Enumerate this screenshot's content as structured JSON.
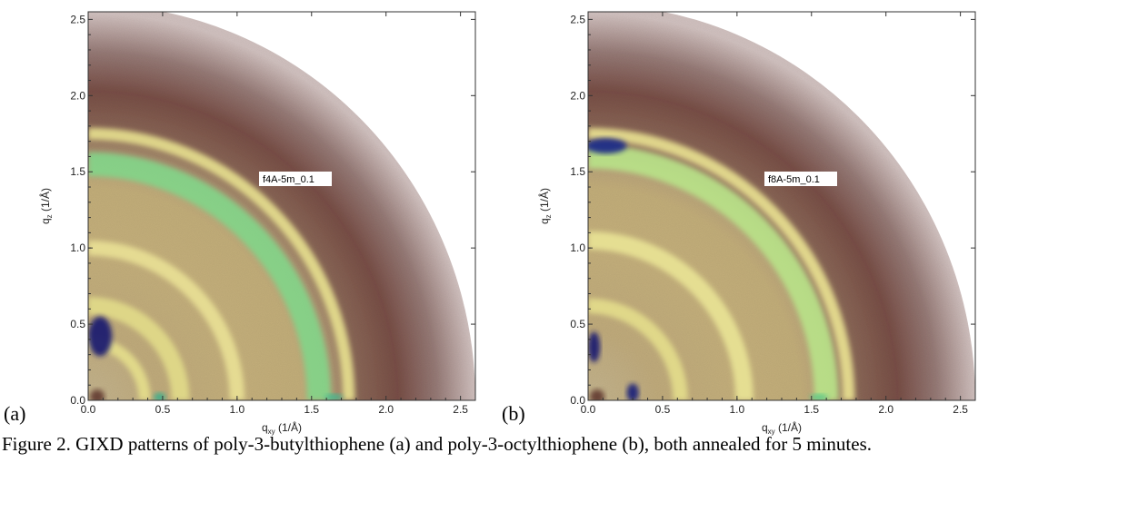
{
  "chart_data": [
    {
      "type": "heatmap",
      "panel_label": "(a)",
      "annotation": "f4A-5m_0.1",
      "xlabel": "q",
      "xlabel_sub": "xy",
      "xlabel_units": "(1/Å)",
      "ylabel": "q",
      "ylabel_sub": "z",
      "ylabel_units": "(1/Å)",
      "xlim": [
        0.0,
        2.6
      ],
      "ylim": [
        0.0,
        2.55
      ],
      "xticks": [
        0.0,
        0.5,
        1.0,
        1.5,
        2.0,
        2.5
      ],
      "yticks": [
        0.0,
        0.5,
        1.0,
        1.5,
        2.0,
        2.5
      ],
      "xtick_labels": [
        "0.0",
        "0.5",
        "1.0",
        "1.5",
        "2.0",
        "2.5"
      ],
      "ytick_labels": [
        "0.0",
        "0.5",
        "1.0",
        "1.5",
        "2.0",
        "2.5"
      ],
      "detector_radius": 2.6,
      "colormap": [
        "#1a1a6e",
        "#2e8a9e",
        "#66d47e",
        "#f4f49a",
        "#b8a070",
        "#7a4a3c",
        "#d8cac8"
      ],
      "rings": [
        {
          "q": 0.38,
          "width": 0.08,
          "color": "#e8e28c",
          "arc_deg": [
            0,
            90
          ]
        },
        {
          "q": 0.62,
          "width": 0.12,
          "color": "#e4de8a",
          "arc_deg": [
            0,
            90
          ]
        },
        {
          "q": 1.0,
          "width": 0.1,
          "color": "#ece496",
          "arc_deg": [
            0,
            90
          ]
        },
        {
          "q": 1.55,
          "width": 0.16,
          "color": "#7fd889",
          "arc_deg": [
            0,
            90
          ]
        },
        {
          "q": 1.75,
          "width": 0.08,
          "color": "#ece692",
          "arc_deg": [
            0,
            90
          ]
        }
      ],
      "hotspots": [
        {
          "qx": 0.08,
          "qz": 0.42,
          "rx": 0.08,
          "rz": 0.13,
          "color": "#1a1c70"
        },
        {
          "qx": 0.48,
          "qz": 0.02,
          "rx": 0.04,
          "rz": 0.03,
          "color": "#3fae8a"
        },
        {
          "qx": 1.65,
          "qz": 0.02,
          "rx": 0.06,
          "rz": 0.02,
          "color": "#40b890"
        }
      ]
    },
    {
      "type": "heatmap",
      "panel_label": "(b)",
      "annotation": "f8A-5m_0.1",
      "xlabel": "q",
      "xlabel_sub": "xy",
      "xlabel_units": "(1/Å)",
      "ylabel": "q",
      "ylabel_sub": "z",
      "ylabel_units": "(1/Å)",
      "xlim": [
        0.0,
        2.6
      ],
      "ylim": [
        0.0,
        2.55
      ],
      "xticks": [
        0.0,
        0.5,
        1.0,
        1.5,
        2.0,
        2.5
      ],
      "yticks": [
        0.0,
        0.5,
        1.0,
        1.5,
        2.0,
        2.5
      ],
      "xtick_labels": [
        "0.0",
        "0.5",
        "1.0",
        "1.5",
        "2.0",
        "2.5"
      ],
      "ytick_labels": [
        "0.0",
        "0.5",
        "1.0",
        "1.5",
        "2.0",
        "2.5"
      ],
      "detector_radius": 2.6,
      "colormap": [
        "#1a1a6e",
        "#2e8a9e",
        "#66d47e",
        "#f4f49a",
        "#b8a070",
        "#7a4a3c",
        "#d8cac8"
      ],
      "rings": [
        {
          "q": 0.62,
          "width": 0.1,
          "color": "#e6e08c",
          "arc_deg": [
            0,
            90
          ]
        },
        {
          "q": 1.05,
          "width": 0.12,
          "color": "#ece896",
          "arc_deg": [
            0,
            90
          ]
        },
        {
          "q": 1.6,
          "width": 0.16,
          "color": "#b8e88a",
          "arc_deg": [
            0,
            90
          ]
        },
        {
          "q": 1.75,
          "width": 0.08,
          "color": "#eee894",
          "arc_deg": [
            0,
            90
          ]
        }
      ],
      "hotspots": [
        {
          "qx": 0.12,
          "qz": 1.67,
          "rx": 0.14,
          "rz": 0.05,
          "color": "#1c2a86"
        },
        {
          "qx": 0.04,
          "qz": 0.35,
          "rx": 0.04,
          "rz": 0.1,
          "color": "#1a1c70"
        },
        {
          "qx": 0.3,
          "qz": 0.05,
          "rx": 0.04,
          "rz": 0.06,
          "color": "#1c2478"
        },
        {
          "qx": 1.55,
          "qz": 0.02,
          "rx": 0.06,
          "rz": 0.02,
          "color": "#58c888"
        }
      ]
    }
  ],
  "panels": {
    "a_label": "(a)",
    "b_label": "(b)"
  },
  "caption": "Figure 2. GIXD patterns of poly-3-butylthiophene (a) and poly-3-octylthiophene (b), both annealed for 5 minutes."
}
